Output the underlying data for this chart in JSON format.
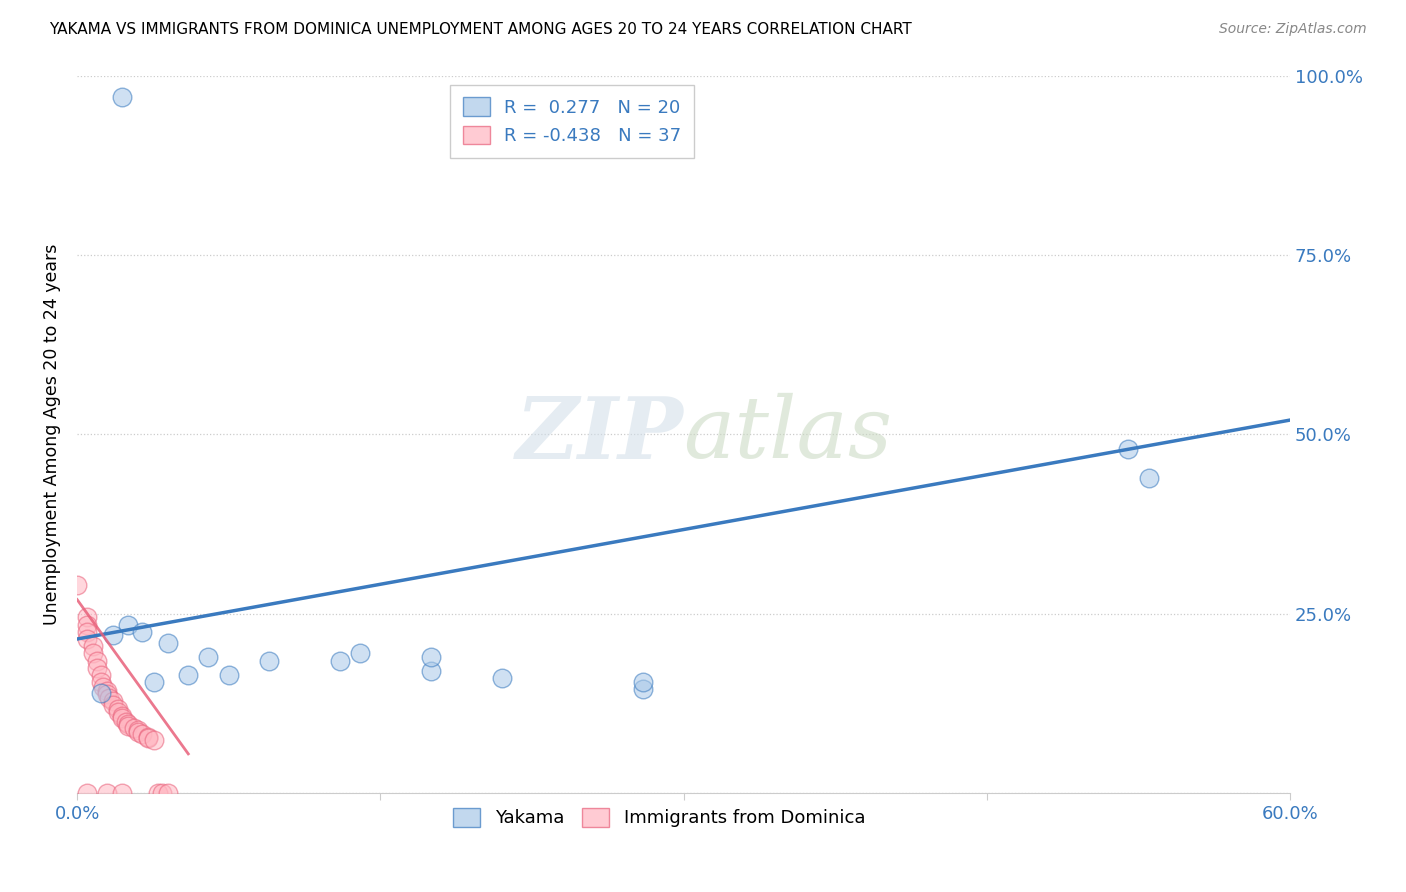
{
  "title": "YAKAMA VS IMMIGRANTS FROM DOMINICA UNEMPLOYMENT AMONG AGES 20 TO 24 YEARS CORRELATION CHART",
  "source": "Source: ZipAtlas.com",
  "ylabel": "Unemployment Among Ages 20 to 24 years",
  "xlim": [
    0.0,
    0.6
  ],
  "ylim": [
    0.0,
    1.0
  ],
  "yakama_color": "#a8c8e8",
  "dominica_color": "#ffb6c1",
  "yakama_line_color": "#3a7abf",
  "dominica_line_color": "#e8607a",
  "R_yakama": 0.277,
  "N_yakama": 20,
  "R_dominica": -0.438,
  "N_dominica": 37,
  "yakama_points": [
    [
      0.022,
      0.97
    ],
    [
      0.045,
      0.21
    ],
    [
      0.025,
      0.235
    ],
    [
      0.032,
      0.225
    ],
    [
      0.018,
      0.22
    ],
    [
      0.065,
      0.19
    ],
    [
      0.095,
      0.185
    ],
    [
      0.14,
      0.195
    ],
    [
      0.175,
      0.17
    ],
    [
      0.21,
      0.16
    ],
    [
      0.52,
      0.48
    ],
    [
      0.53,
      0.44
    ],
    [
      0.012,
      0.14
    ],
    [
      0.038,
      0.155
    ],
    [
      0.055,
      0.165
    ],
    [
      0.075,
      0.165
    ],
    [
      0.13,
      0.185
    ],
    [
      0.175,
      0.19
    ],
    [
      0.28,
      0.145
    ],
    [
      0.28,
      0.155
    ]
  ],
  "dominica_points": [
    [
      0.0,
      0.29
    ],
    [
      0.005,
      0.245
    ],
    [
      0.005,
      0.235
    ],
    [
      0.005,
      0.225
    ],
    [
      0.005,
      0.215
    ],
    [
      0.008,
      0.205
    ],
    [
      0.008,
      0.195
    ],
    [
      0.01,
      0.185
    ],
    [
      0.01,
      0.175
    ],
    [
      0.012,
      0.165
    ],
    [
      0.012,
      0.155
    ],
    [
      0.013,
      0.148
    ],
    [
      0.015,
      0.143
    ],
    [
      0.015,
      0.138
    ],
    [
      0.016,
      0.133
    ],
    [
      0.018,
      0.128
    ],
    [
      0.018,
      0.123
    ],
    [
      0.02,
      0.118
    ],
    [
      0.02,
      0.113
    ],
    [
      0.022,
      0.108
    ],
    [
      0.022,
      0.105
    ],
    [
      0.024,
      0.1
    ],
    [
      0.025,
      0.097
    ],
    [
      0.025,
      0.094
    ],
    [
      0.028,
      0.091
    ],
    [
      0.03,
      0.088
    ],
    [
      0.03,
      0.085
    ],
    [
      0.032,
      0.082
    ],
    [
      0.035,
      0.079
    ],
    [
      0.035,
      0.077
    ],
    [
      0.038,
      0.074
    ],
    [
      0.04,
      0.0
    ],
    [
      0.042,
      0.0
    ],
    [
      0.045,
      0.0
    ],
    [
      0.005,
      0.0
    ],
    [
      0.015,
      0.0
    ],
    [
      0.022,
      0.0
    ]
  ],
  "yakama_line_x": [
    0.0,
    0.6
  ],
  "yakama_line_y": [
    0.215,
    0.52
  ],
  "dominica_line_x": [
    0.0,
    0.055
  ],
  "dominica_line_y": [
    0.27,
    0.055
  ]
}
